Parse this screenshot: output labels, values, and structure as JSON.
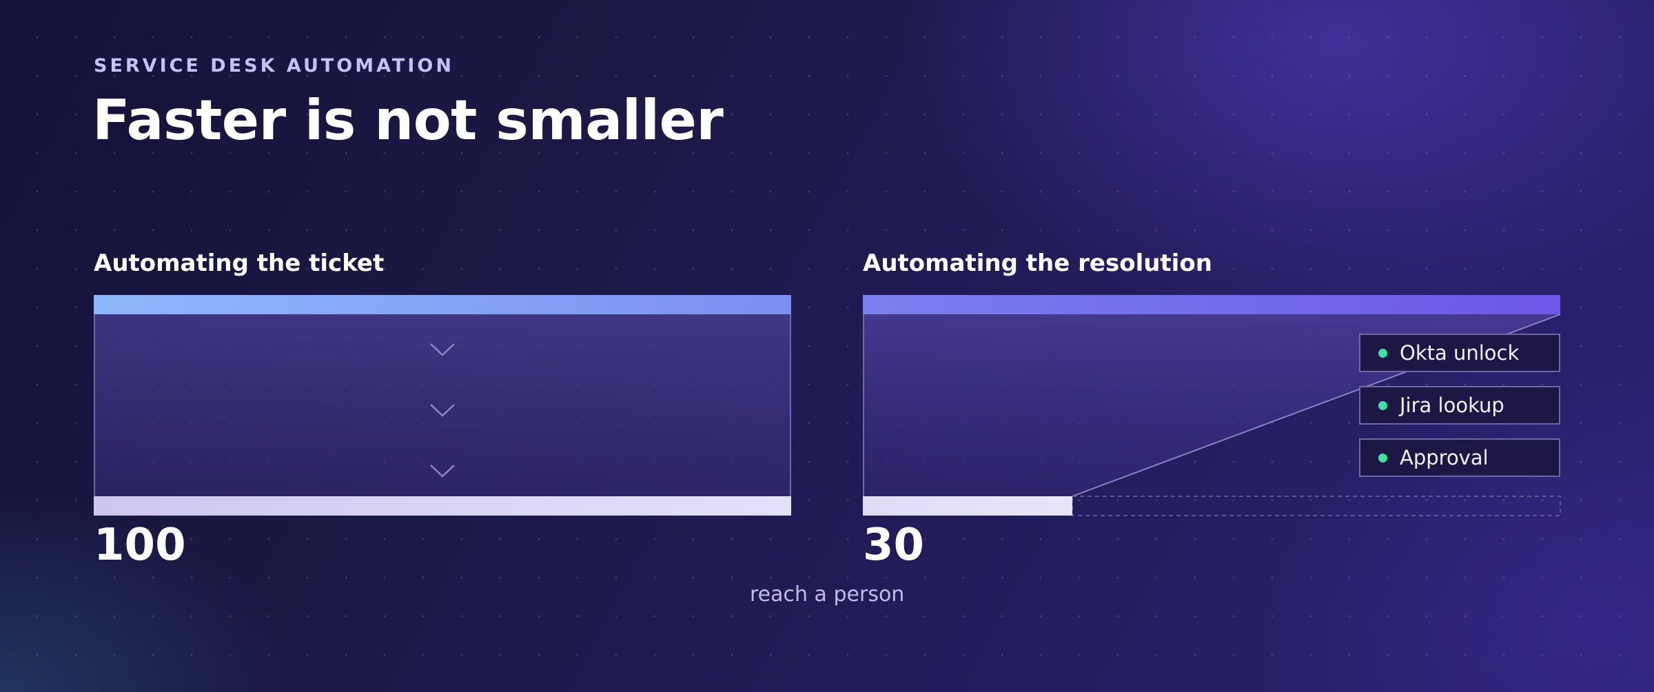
{
  "header": {
    "eyebrow": "SERVICE DESK AUTOMATION",
    "title": "Faster is not smaller"
  },
  "panels": {
    "ticket": {
      "title": "Automating the ticket",
      "value": "100"
    },
    "resolution": {
      "title": "Automating the resolution",
      "value": "30",
      "deflected_by": [
        "Okta unlock",
        "Jira lookup",
        "Approval"
      ]
    }
  },
  "caption": "reach a person",
  "colors": {
    "accent_start": "#8fb8fb",
    "accent_end": "#6e57ea",
    "chip_dot": "#3ee0a6",
    "bottom_bar": "#dcd8f6"
  },
  "icons": {
    "flow": "chevron-down-icon",
    "chip": "status-dot-icon"
  }
}
